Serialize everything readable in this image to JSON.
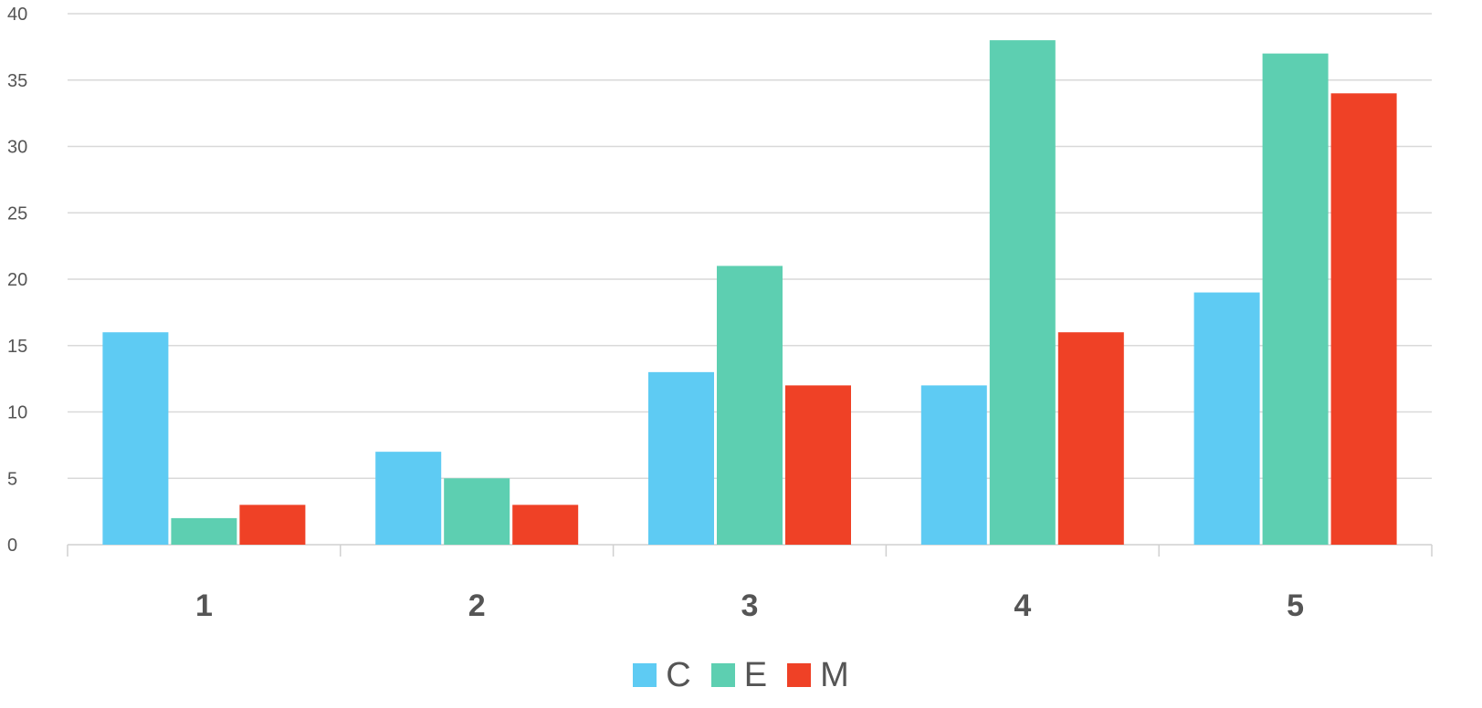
{
  "chart_data": {
    "type": "bar",
    "categories": [
      "1",
      "2",
      "3",
      "4",
      "5"
    ],
    "series": [
      {
        "name": "C",
        "color": "#5ECBF3",
        "values": [
          16,
          7,
          13,
          12,
          19
        ]
      },
      {
        "name": "E",
        "color": "#5DCFB1",
        "values": [
          2,
          5,
          21,
          38,
          37
        ]
      },
      {
        "name": "M",
        "color": "#EF4126",
        "values": [
          3,
          3,
          12,
          16,
          34
        ]
      }
    ],
    "ylim": [
      0,
      40
    ],
    "yticks": [
      0,
      5,
      10,
      15,
      20,
      25,
      30,
      35,
      40
    ],
    "grid": true,
    "legend_position": "bottom",
    "title": "",
    "xlabel": "",
    "ylabel": ""
  }
}
